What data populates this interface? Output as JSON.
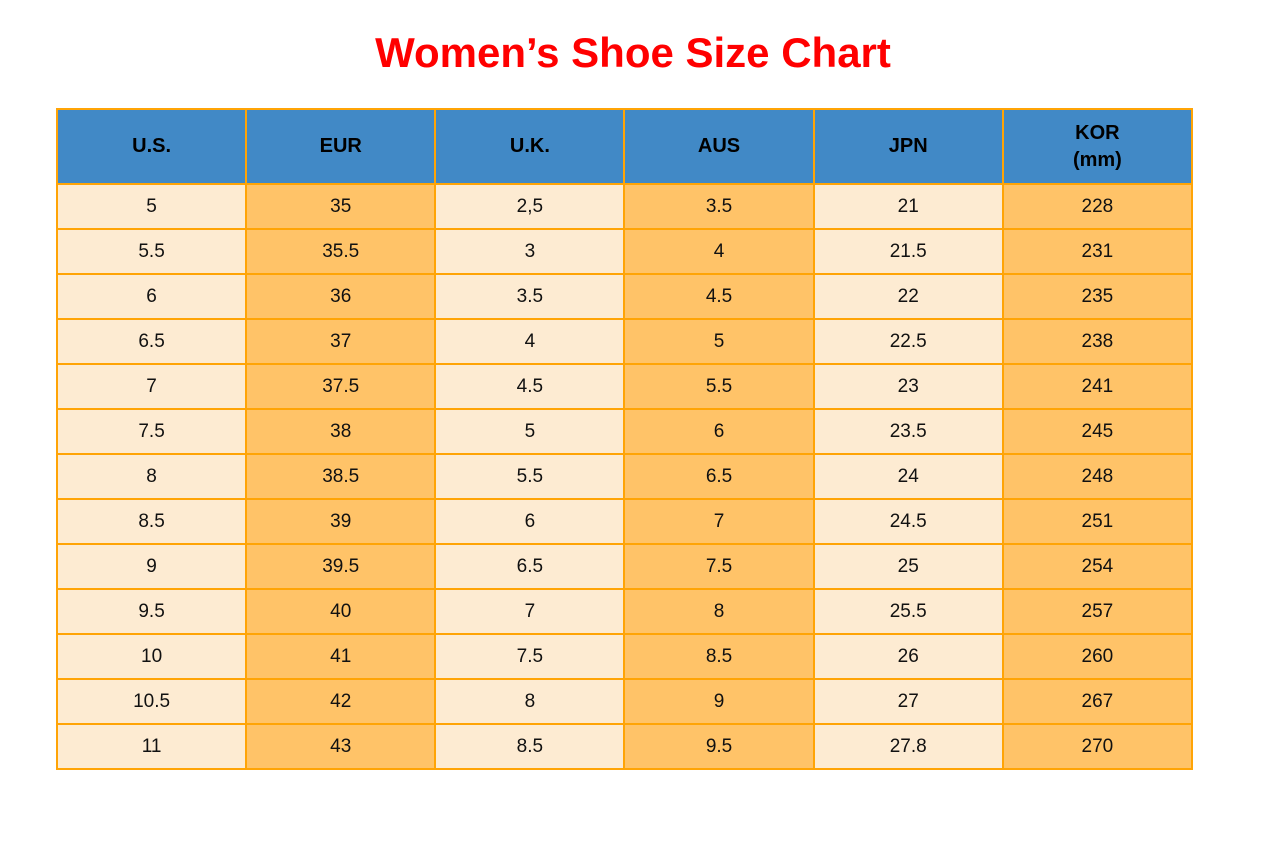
{
  "title": "Women’s Shoe Size Chart",
  "colors": {
    "title": "#ff0000",
    "header_bg": "#4189c6",
    "cream_column": "#fdebd2",
    "orange_column": "#ffc368",
    "grid_border": "#ffa406",
    "cell_text": "#111111"
  },
  "chart_data": {
    "type": "table",
    "title": "Women’s Shoe Size Chart",
    "columns": [
      {
        "label": "U.S.",
        "sublabel": ""
      },
      {
        "label": "EUR",
        "sublabel": ""
      },
      {
        "label": "U.K.",
        "sublabel": ""
      },
      {
        "label": "AUS",
        "sublabel": ""
      },
      {
        "label": "JPN",
        "sublabel": ""
      },
      {
        "label": "KOR",
        "sublabel": "(mm)"
      }
    ],
    "column_banding": [
      "cream",
      "orange",
      "cream",
      "orange",
      "cream",
      "orange"
    ],
    "rows": [
      [
        "5",
        "35",
        "2,5",
        "3.5",
        "21",
        "228"
      ],
      [
        "5.5",
        "35.5",
        "3",
        "4",
        "21.5",
        "231"
      ],
      [
        "6",
        "36",
        "3.5",
        "4.5",
        "22",
        "235"
      ],
      [
        "6.5",
        "37",
        "4",
        "5",
        "22.5",
        "238"
      ],
      [
        "7",
        "37.5",
        "4.5",
        "5.5",
        "23",
        "241"
      ],
      [
        "7.5",
        "38",
        "5",
        "6",
        "23.5",
        "245"
      ],
      [
        "8",
        "38.5",
        "5.5",
        "6.5",
        "24",
        "248"
      ],
      [
        "8.5",
        "39",
        "6",
        "7",
        "24.5",
        "251"
      ],
      [
        "9",
        "39.5",
        "6.5",
        "7.5",
        "25",
        "254"
      ],
      [
        "9.5",
        "40",
        "7",
        "8",
        "25.5",
        "257"
      ],
      [
        "10",
        "41",
        "7.5",
        "8.5",
        "26",
        "260"
      ],
      [
        "10.5",
        "42",
        "8",
        "9",
        "27",
        "267"
      ],
      [
        "11",
        "43",
        "8.5",
        "9.5",
        "27.8",
        "270"
      ]
    ]
  }
}
